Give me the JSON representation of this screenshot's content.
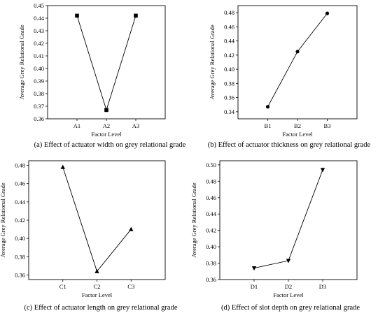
{
  "chart_data": [
    {
      "type": "line",
      "marker": "square",
      "categories": [
        "A1",
        "A2",
        "A3"
      ],
      "values": [
        0.442,
        0.367,
        0.442
      ],
      "ylim": [
        0.36,
        0.45
      ],
      "yticks": [
        "0.36",
        "0.37",
        "0.38",
        "0.39",
        "0.40",
        "0.41",
        "0.42",
        "0.43",
        "0.44",
        "0.45"
      ],
      "xlabel": "Factor Level",
      "ylabel": "Average Grey Relational Grade",
      "caption": "(a) Effect of actuator width on grey relational grade",
      "grid": false
    },
    {
      "type": "line",
      "marker": "circle",
      "categories": [
        "B1",
        "B2",
        "B3"
      ],
      "values": [
        0.347,
        0.425,
        0.479
      ],
      "ylim": [
        0.33,
        0.49
      ],
      "yticks": [
        "0.34",
        "0.36",
        "0.38",
        "0.40",
        "0.42",
        "0.44",
        "0.46",
        "0.48"
      ],
      "xlabel": "Factor Level",
      "ylabel": "Average Grey Relational Grade",
      "caption": "(b) Effect of actuator thickness on grey relational grade",
      "grid": false
    },
    {
      "type": "line",
      "marker": "triangle-up",
      "categories": [
        "C1",
        "C2",
        "C3"
      ],
      "values": [
        0.478,
        0.364,
        0.41
      ],
      "ylim": [
        0.355,
        0.485
      ],
      "yticks": [
        "0.36",
        "0.38",
        "0.40",
        "0.42",
        "0.44",
        "0.46",
        "0.48"
      ],
      "xlabel": "Factor Level",
      "ylabel": "Average Grey Relational Grade",
      "caption": "(c) Effect of actuator length on grey relational grade",
      "grid": false
    },
    {
      "type": "line",
      "marker": "triangle-down",
      "categories": [
        "D1",
        "D2",
        "D3"
      ],
      "values": [
        0.374,
        0.383,
        0.494
      ],
      "ylim": [
        0.36,
        0.505
      ],
      "yticks": [
        "0.36",
        "0.38",
        "0.40",
        "0.42",
        "0.44",
        "0.46",
        "0.48",
        "0.50"
      ],
      "xlabel": "Factor Level",
      "ylabel": "Average Grey Relational Grade",
      "caption": "(d) Effect of slot depth on grey relational grade",
      "grid": false
    }
  ]
}
